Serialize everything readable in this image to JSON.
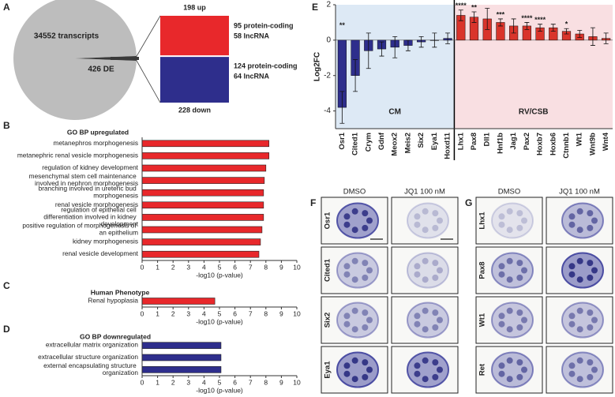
{
  "chart_data": [
    {
      "type": "pie",
      "letter": "A",
      "values": [
        34552,
        426
      ],
      "value_labels": [
        "34552 transcripts",
        "426 DE"
      ],
      "colors": [
        "#bdbdbd",
        "#3a3a3a"
      ]
    },
    {
      "type": "stack",
      "values": [
        198,
        228
      ],
      "value_labels": [
        "198 up",
        "228 down"
      ],
      "colors": [
        "#e8282b",
        "#2e2e8c"
      ],
      "details": [
        [
          "95 protein-coding",
          "58 lncRNA"
        ],
        [
          "124 protein-coding",
          "64 lncRNA"
        ]
      ]
    },
    {
      "type": "barh",
      "letter": "B",
      "title": "GO BP upregulated",
      "color": "#e8282b",
      "categories": [
        "metanephros morphogenesis",
        "metanephric renal vesicle morphogenesis",
        "regulation of kidney development",
        "mesenchymal stem cell maintenance involved in nephron morphogenesis",
        "branching involved in ureteric bud morphogenesis",
        "renal vesicle morphogenesis",
        "regulation of epithelial cell differentiation involved in kidney development",
        "positive regulation of morphogenesis of an epithelium",
        "kidney morphogenesis",
        "renal vesicle development"
      ],
      "values": [
        8.2,
        8.2,
        8.0,
        7.9,
        7.85,
        7.85,
        7.85,
        7.75,
        7.65,
        7.55
      ],
      "xlim": [
        0,
        10
      ],
      "xticks": [
        0,
        1,
        2,
        3,
        4,
        5,
        6,
        7,
        8,
        9,
        10
      ],
      "x_label": "-log10 (p-value)"
    },
    {
      "type": "barh",
      "letter": "C",
      "title": "Human Phenotype",
      "color": "#e8282b",
      "categories": [
        "Renal hypoplasia"
      ],
      "values": [
        4.7
      ],
      "xlim": [
        0,
        10
      ],
      "xticks": [
        0,
        1,
        2,
        3,
        4,
        5,
        6,
        7,
        8,
        9,
        10
      ],
      "x_label": "-log10 (p-value)"
    },
    {
      "type": "barh",
      "letter": "D",
      "title": "GO BP downregulated",
      "color": "#2e2e8c",
      "categories": [
        "extracellular matrix organization",
        "extracellular structure organization",
        "external encapsulating structure organization"
      ],
      "values": [
        5.1,
        5.1,
        5.1
      ],
      "xlim": [
        0,
        10
      ],
      "xticks": [
        0,
        1,
        2,
        3,
        4,
        5,
        6,
        7,
        8,
        9,
        10
      ],
      "x_label": "-log10 (p-value)"
    },
    {
      "type": "bar",
      "letter": "E",
      "y_label": "Log2FC",
      "categories": [
        "Osr1",
        "Cited1",
        "Crym",
        "Gdnf",
        "Meox2",
        "Meis2",
        "Six2",
        "Eya1",
        "Hoxd11",
        "Lhx1",
        "Pax8",
        "Dll1",
        "Hnf1b",
        "Jag1",
        "Pax2",
        "Hoxb7",
        "Hoxb6",
        "Ctnnb1",
        "Wt1",
        "Wnt9b",
        "Wnt4"
      ],
      "values": [
        -3.8,
        -2.0,
        -0.6,
        -0.5,
        -0.4,
        -0.3,
        -0.1,
        0.0,
        0.1,
        1.4,
        1.3,
        1.2,
        1.0,
        0.8,
        0.8,
        0.7,
        0.7,
        0.5,
        0.35,
        0.2,
        0.1
      ],
      "errors": [
        0.9,
        0.9,
        1.0,
        0.4,
        0.6,
        0.3,
        0.3,
        0.4,
        0.3,
        0.3,
        0.3,
        0.6,
        0.2,
        0.4,
        0.2,
        0.2,
        0.2,
        0.15,
        0.2,
        0.5,
        0.3
      ],
      "annotations": [
        "**",
        null,
        null,
        null,
        null,
        null,
        null,
        null,
        null,
        "****",
        "**",
        null,
        "***",
        null,
        "****",
        "****",
        null,
        "*",
        null,
        null,
        null
      ],
      "regions": [
        {
          "label": "CM",
          "start": "Osr1",
          "end": "Hoxd11",
          "bar_color": "#2e2e8c",
          "background": "#dde9f5"
        },
        {
          "label": "RV/CSB",
          "start": "Lhx1",
          "end": "Wnt4",
          "bar_color": "#d9342b",
          "background": "#f9dfe2"
        }
      ],
      "ylim": [
        -5,
        2
      ],
      "yticks": [
        -4,
        -2,
        0,
        2
      ]
    }
  ],
  "images": [
    {
      "letter": "F",
      "columns": [
        "DMSO",
        "JQ1 100 nM"
      ],
      "rows": [
        "Osr1",
        "Cited1",
        "Six2",
        "Eya1"
      ]
    },
    {
      "letter": "G",
      "columns": [
        "DMSO",
        "JQ1 100 nM"
      ],
      "rows": [
        "Lhx1",
        "Pax8",
        "Wt1",
        "Ret"
      ]
    }
  ]
}
